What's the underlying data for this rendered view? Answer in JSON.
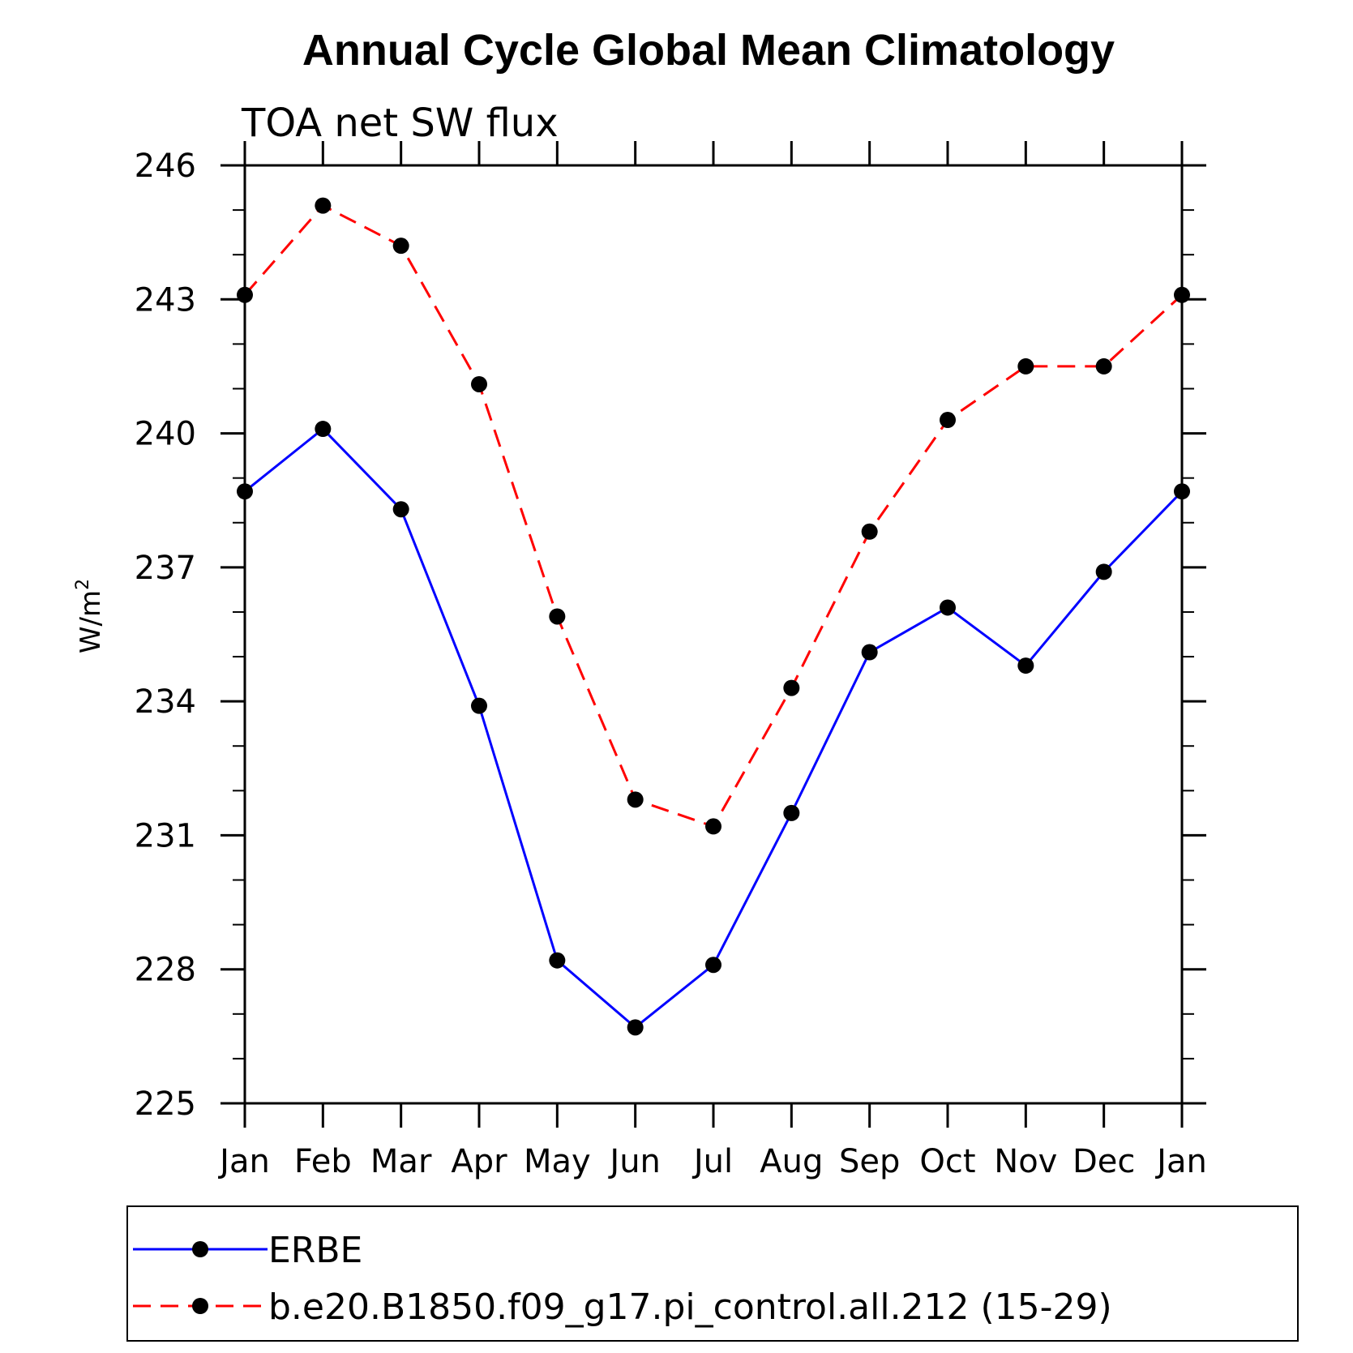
{
  "chart_data": {
    "type": "line",
    "title": "Annual Cycle Global Mean Climatology",
    "subtitle": "TOA net SW flux",
    "ylabel": "W/m",
    "ylabel_sup": "2",
    "xlabel": "",
    "categories": [
      "Jan",
      "Feb",
      "Mar",
      "Apr",
      "May",
      "Jun",
      "Jul",
      "Aug",
      "Sep",
      "Oct",
      "Nov",
      "Dec",
      "Jan"
    ],
    "ylim": [
      225,
      246
    ],
    "yticks": [
      225,
      228,
      231,
      234,
      237,
      240,
      243,
      246
    ],
    "series": [
      {
        "name": "ERBE",
        "color": "#0000ff",
        "dash": "solid",
        "marker": "filled-circle",
        "values": [
          238.7,
          240.1,
          238.3,
          233.9,
          228.2,
          226.7,
          228.1,
          231.5,
          235.1,
          236.1,
          234.8,
          236.9,
          238.7
        ]
      },
      {
        "name": "b.e20.B1850.f09_g17.pi_control.all.212 (15-29)",
        "color": "#ff0000",
        "dash": "dashed",
        "marker": "filled-circle",
        "values": [
          243.1,
          245.1,
          244.2,
          241.1,
          235.9,
          231.8,
          231.2,
          234.3,
          237.8,
          240.3,
          241.5,
          241.5,
          243.1
        ]
      }
    ],
    "grid": false,
    "legend_position": "bottom"
  }
}
